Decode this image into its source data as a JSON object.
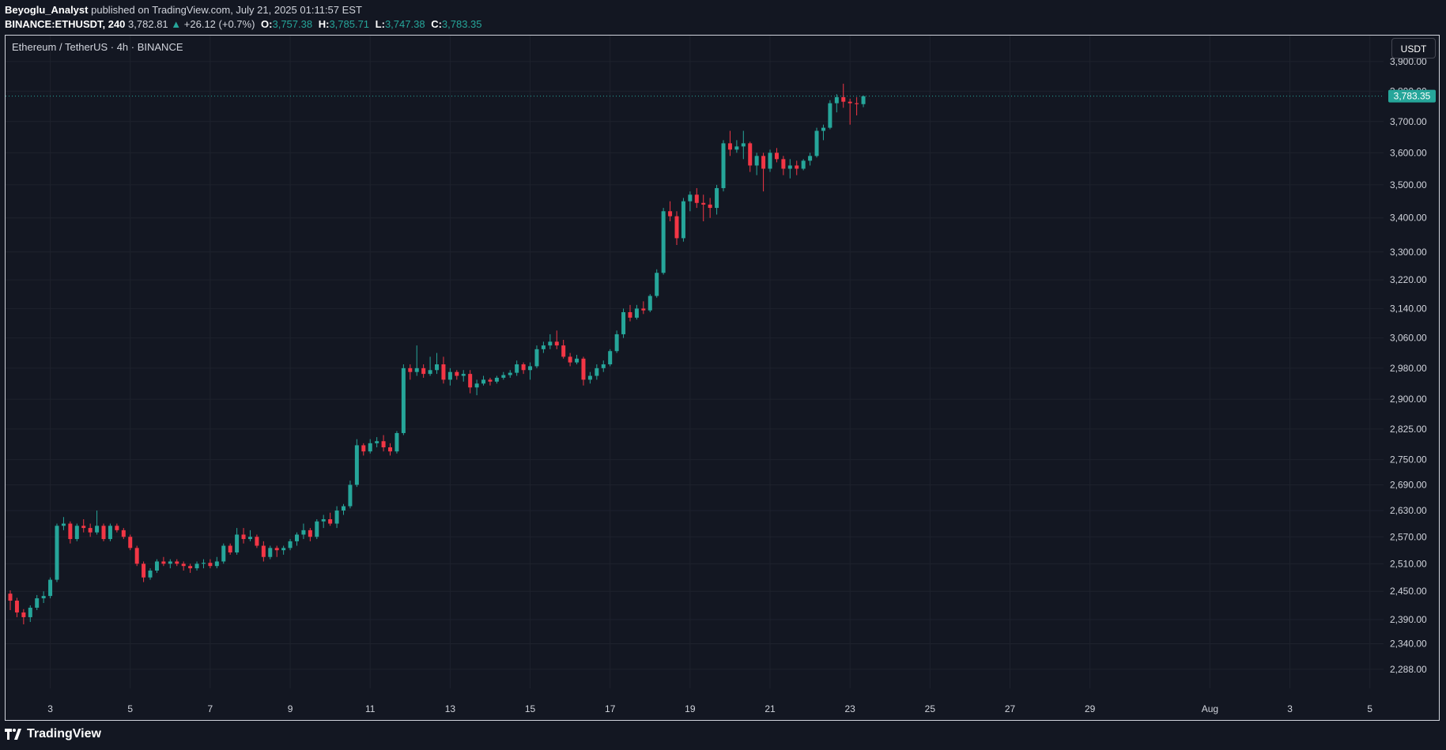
{
  "header": {
    "author": "Beyoglu_Analyst",
    "published_text": "published on TradingView.com, July 21, 2025 01:11:57 EST",
    "symbol": "BINANCE:ETHUSDT, 240",
    "last": "3,782.81",
    "change_arrow": "▲",
    "change": "+26.12 (+0.7%)",
    "open_label": "O:",
    "open": "3,757.38",
    "high_label": "H:",
    "high": "3,785.71",
    "low_label": "L:",
    "low": "3,747.38",
    "close_label": "C:",
    "close": "3,783.35"
  },
  "legend": "Ethereum / TetherUS · 4h · BINANCE",
  "currency": "USDT",
  "footer": {
    "brand": "TradingView"
  },
  "colors": {
    "up": "#26a69a",
    "down": "#f23645",
    "background": "#131722",
    "grid": "#1e222d"
  },
  "chart_data": {
    "type": "candlestick",
    "interval": "4h",
    "y_scale": "log",
    "ylim": [
      2250,
      3990
    ],
    "last_price": 3783.35,
    "last_price_label": "3,783.35",
    "yticks": [
      {
        "v": 3900,
        "label": "3,900.00"
      },
      {
        "v": 3800,
        "label": "3,800.00"
      },
      {
        "v": 3700,
        "label": "3,700.00"
      },
      {
        "v": 3600,
        "label": "3,600.00"
      },
      {
        "v": 3500,
        "label": "3,500.00"
      },
      {
        "v": 3400,
        "label": "3,400.00"
      },
      {
        "v": 3300,
        "label": "3,300.00"
      },
      {
        "v": 3220,
        "label": "3,220.00"
      },
      {
        "v": 3140,
        "label": "3,140.00"
      },
      {
        "v": 3060,
        "label": "3,060.00"
      },
      {
        "v": 2980,
        "label": "2,980.00"
      },
      {
        "v": 2900,
        "label": "2,900.00"
      },
      {
        "v": 2825,
        "label": "2,825.00"
      },
      {
        "v": 2750,
        "label": "2,750.00"
      },
      {
        "v": 2690,
        "label": "2,690.00"
      },
      {
        "v": 2630,
        "label": "2,630.00"
      },
      {
        "v": 2570,
        "label": "2,570.00"
      },
      {
        "v": 2510,
        "label": "2,510.00"
      },
      {
        "v": 2450,
        "label": "2,450.00"
      },
      {
        "v": 2390,
        "label": "2,390.00"
      },
      {
        "v": 2340,
        "label": "2,340.00"
      },
      {
        "v": 2288,
        "label": "2,288.00"
      }
    ],
    "xticks": [
      {
        "i": 6,
        "label": "3"
      },
      {
        "i": 18,
        "label": "5"
      },
      {
        "i": 30,
        "label": "7"
      },
      {
        "i": 42,
        "label": "9"
      },
      {
        "i": 54,
        "label": "11"
      },
      {
        "i": 66,
        "label": "13"
      },
      {
        "i": 78,
        "label": "15"
      },
      {
        "i": 90,
        "label": "17"
      },
      {
        "i": 102,
        "label": "19"
      },
      {
        "i": 114,
        "label": "21"
      },
      {
        "i": 126,
        "label": "23"
      },
      {
        "i": 138,
        "label": "25"
      },
      {
        "i": 150,
        "label": "27"
      },
      {
        "i": 162,
        "label": "29"
      },
      {
        "i": 180,
        "label": "Aug"
      },
      {
        "i": 192,
        "label": "3"
      },
      {
        "i": 204,
        "label": "5"
      }
    ],
    "candles": [
      [
        2445,
        2452,
        2410,
        2430
      ],
      [
        2430,
        2436,
        2395,
        2405
      ],
      [
        2405,
        2412,
        2380,
        2395
      ],
      [
        2395,
        2420,
        2385,
        2415
      ],
      [
        2415,
        2442,
        2410,
        2435
      ],
      [
        2435,
        2450,
        2425,
        2440
      ],
      [
        2440,
        2480,
        2435,
        2475
      ],
      [
        2475,
        2600,
        2470,
        2595
      ],
      [
        2595,
        2615,
        2585,
        2600
      ],
      [
        2600,
        2605,
        2555,
        2565
      ],
      [
        2565,
        2600,
        2560,
        2595
      ],
      [
        2595,
        2610,
        2580,
        2590
      ],
      [
        2590,
        2600,
        2570,
        2580
      ],
      [
        2580,
        2630,
        2575,
        2595
      ],
      [
        2595,
        2600,
        2560,
        2565
      ],
      [
        2565,
        2600,
        2560,
        2595
      ],
      [
        2595,
        2600,
        2580,
        2585
      ],
      [
        2585,
        2590,
        2565,
        2570
      ],
      [
        2570,
        2575,
        2540,
        2545
      ],
      [
        2545,
        2550,
        2505,
        2510
      ],
      [
        2510,
        2515,
        2470,
        2480
      ],
      [
        2480,
        2500,
        2475,
        2495
      ],
      [
        2495,
        2520,
        2490,
        2515
      ],
      [
        2515,
        2525,
        2505,
        2510
      ],
      [
        2510,
        2520,
        2500,
        2515
      ],
      [
        2515,
        2520,
        2505,
        2510
      ],
      [
        2510,
        2515,
        2495,
        2505
      ],
      [
        2505,
        2510,
        2490,
        2500
      ],
      [
        2500,
        2515,
        2495,
        2510
      ],
      [
        2510,
        2520,
        2500,
        2512
      ],
      [
        2512,
        2520,
        2500,
        2505
      ],
      [
        2505,
        2525,
        2500,
        2515
      ],
      [
        2515,
        2555,
        2510,
        2550
      ],
      [
        2550,
        2555,
        2530,
        2535
      ],
      [
        2535,
        2590,
        2530,
        2575
      ],
      [
        2575,
        2590,
        2555,
        2565
      ],
      [
        2565,
        2585,
        2560,
        2570
      ],
      [
        2570,
        2575,
        2545,
        2550
      ],
      [
        2550,
        2560,
        2515,
        2525
      ],
      [
        2525,
        2550,
        2520,
        2545
      ],
      [
        2545,
        2550,
        2525,
        2540
      ],
      [
        2540,
        2550,
        2530,
        2545
      ],
      [
        2545,
        2565,
        2540,
        2560
      ],
      [
        2560,
        2580,
        2550,
        2575
      ],
      [
        2575,
        2600,
        2565,
        2585
      ],
      [
        2585,
        2590,
        2560,
        2570
      ],
      [
        2570,
        2610,
        2565,
        2605
      ],
      [
        2605,
        2620,
        2590,
        2610
      ],
      [
        2610,
        2625,
        2595,
        2600
      ],
      [
        2600,
        2640,
        2590,
        2630
      ],
      [
        2630,
        2645,
        2620,
        2640
      ],
      [
        2640,
        2700,
        2635,
        2690
      ],
      [
        2690,
        2800,
        2685,
        2785
      ],
      [
        2785,
        2790,
        2760,
        2770
      ],
      [
        2770,
        2800,
        2765,
        2790
      ],
      [
        2790,
        2805,
        2780,
        2795
      ],
      [
        2795,
        2810,
        2770,
        2780
      ],
      [
        2780,
        2790,
        2760,
        2770
      ],
      [
        2770,
        2820,
        2765,
        2815
      ],
      [
        2815,
        2990,
        2810,
        2980
      ],
      [
        2980,
        2990,
        2950,
        2970
      ],
      [
        2970,
        3040,
        2960,
        2980
      ],
      [
        2980,
        2990,
        2955,
        2965
      ],
      [
        2965,
        3010,
        2960,
        2975
      ],
      [
        2975,
        3020,
        2965,
        2990
      ],
      [
        2990,
        3010,
        2940,
        2950
      ],
      [
        2950,
        2980,
        2935,
        2970
      ],
      [
        2970,
        2975,
        2950,
        2960
      ],
      [
        2960,
        2975,
        2945,
        2965
      ],
      [
        2965,
        2975,
        2915,
        2930
      ],
      [
        2930,
        2950,
        2910,
        2940
      ],
      [
        2940,
        2960,
        2935,
        2950
      ],
      [
        2950,
        2955,
        2935,
        2945
      ],
      [
        2945,
        2960,
        2940,
        2955
      ],
      [
        2955,
        2970,
        2950,
        2962
      ],
      [
        2962,
        2975,
        2955,
        2968
      ],
      [
        2968,
        3000,
        2960,
        2990
      ],
      [
        2990,
        2995,
        2965,
        2975
      ],
      [
        2975,
        2995,
        2950,
        2985
      ],
      [
        2985,
        3040,
        2980,
        3030
      ],
      [
        3030,
        3050,
        3020,
        3040
      ],
      [
        3040,
        3070,
        3030,
        3050
      ],
      [
        3050,
        3080,
        3030,
        3040
      ],
      [
        3040,
        3055,
        3005,
        3010
      ],
      [
        3010,
        3020,
        2985,
        2995
      ],
      [
        2995,
        3015,
        2990,
        3005
      ],
      [
        3005,
        3010,
        2935,
        2950
      ],
      [
        2950,
        2970,
        2940,
        2960
      ],
      [
        2960,
        2990,
        2950,
        2980
      ],
      [
        2980,
        3000,
        2970,
        2990
      ],
      [
        2990,
        3030,
        2985,
        3025
      ],
      [
        3025,
        3080,
        3020,
        3070
      ],
      [
        3070,
        3140,
        3060,
        3130
      ],
      [
        3130,
        3150,
        3105,
        3115
      ],
      [
        3115,
        3150,
        3110,
        3140
      ],
      [
        3140,
        3160,
        3125,
        3135
      ],
      [
        3135,
        3180,
        3130,
        3175
      ],
      [
        3175,
        3250,
        3170,
        3240
      ],
      [
        3240,
        3430,
        3235,
        3420
      ],
      [
        3420,
        3450,
        3390,
        3405
      ],
      [
        3405,
        3420,
        3320,
        3340
      ],
      [
        3340,
        3460,
        3330,
        3450
      ],
      [
        3450,
        3480,
        3420,
        3470
      ],
      [
        3470,
        3490,
        3430,
        3445
      ],
      [
        3445,
        3470,
        3390,
        3440
      ],
      [
        3440,
        3460,
        3400,
        3430
      ],
      [
        3430,
        3500,
        3410,
        3490
      ],
      [
        3490,
        3640,
        3480,
        3630
      ],
      [
        3630,
        3670,
        3590,
        3610
      ],
      [
        3610,
        3640,
        3600,
        3620
      ],
      [
        3620,
        3670,
        3580,
        3630
      ],
      [
        3630,
        3635,
        3540,
        3560
      ],
      [
        3560,
        3600,
        3530,
        3590
      ],
      [
        3590,
        3600,
        3480,
        3550
      ],
      [
        3550,
        3610,
        3540,
        3600
      ],
      [
        3600,
        3615,
        3570,
        3580
      ],
      [
        3580,
        3590,
        3530,
        3550
      ],
      [
        3550,
        3580,
        3520,
        3560
      ],
      [
        3560,
        3575,
        3530,
        3550
      ],
      [
        3550,
        3580,
        3545,
        3575
      ],
      [
        3575,
        3600,
        3560,
        3590
      ],
      [
        3590,
        3680,
        3585,
        3670
      ],
      [
        3670,
        3690,
        3640,
        3680
      ],
      [
        3680,
        3770,
        3675,
        3760
      ],
      [
        3760,
        3790,
        3730,
        3780
      ],
      [
        3780,
        3825,
        3745,
        3765
      ],
      [
        3765,
        3775,
        3690,
        3760
      ],
      [
        3760,
        3780,
        3720,
        3757
      ],
      [
        3757,
        3786,
        3747,
        3783
      ]
    ]
  }
}
